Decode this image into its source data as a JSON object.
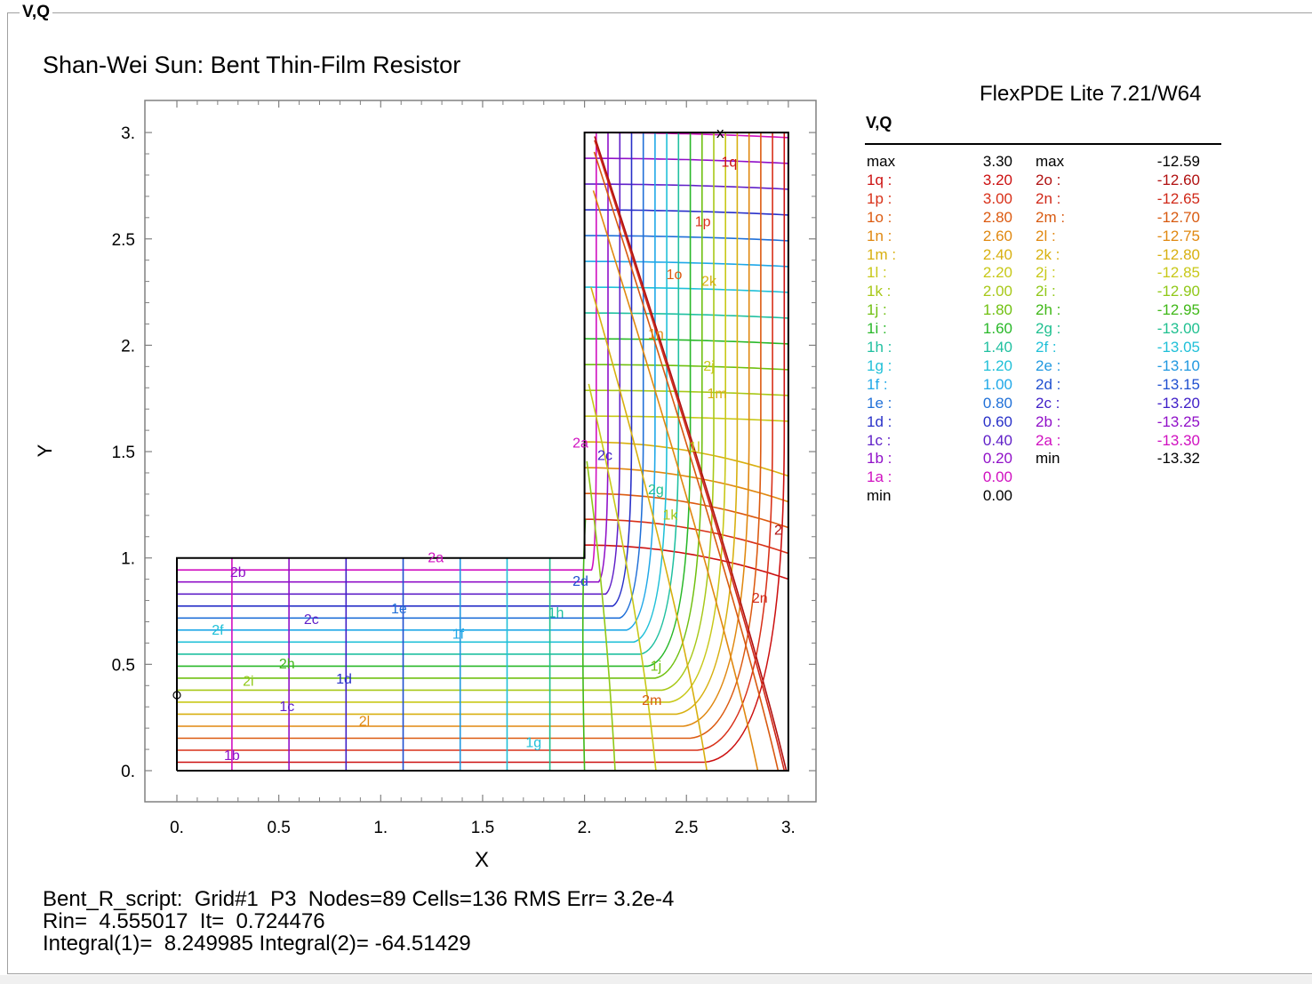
{
  "window": {
    "frame_label": "V,Q"
  },
  "plot": {
    "title": "Shan-Wei Sun: Bent Thin-Film Resistor",
    "software": "FlexPDE Lite 7.21/W64",
    "xlabel": "X",
    "ylabel": "Y"
  },
  "chart_data": {
    "type": "contour",
    "title": "Shan-Wei Sun: Bent Thin-Film Resistor",
    "xlabel": "X",
    "ylabel": "Y",
    "xlim": [
      0,
      3
    ],
    "ylim": [
      0,
      3
    ],
    "x_ticks": [
      "0.",
      "0.5",
      "1.",
      "1.5",
      "2.",
      "2.5",
      "3."
    ],
    "y_ticks": [
      "0.",
      "0.5",
      "1.",
      "1.5",
      "2.",
      "2.5",
      "3."
    ],
    "domain_boundary": [
      [
        0,
        0
      ],
      [
        3,
        0
      ],
      [
        3,
        3
      ],
      [
        2,
        3
      ],
      [
        2,
        1
      ],
      [
        0,
        1
      ],
      [
        0,
        0
      ]
    ],
    "fields": [
      "V",
      "Q"
    ],
    "legend_header": "V,Q",
    "v_levels": [
      {
        "label": "max",
        "value": "3.30",
        "color": "#000000"
      },
      {
        "label": "1q :",
        "value": "3.20",
        "color": "#cc1010"
      },
      {
        "label": "1p :",
        "value": "3.00",
        "color": "#d83018"
      },
      {
        "label": "1o :",
        "value": "2.80",
        "color": "#dc5a10"
      },
      {
        "label": "1n :",
        "value": "2.60",
        "color": "#e08810"
      },
      {
        "label": "1m :",
        "value": "2.40",
        "color": "#d8b010"
      },
      {
        "label": "1l :",
        "value": "2.20",
        "color": "#c8c818"
      },
      {
        "label": "1k :",
        "value": "2.00",
        "color": "#a8c818"
      },
      {
        "label": "1j :",
        "value": "1.80",
        "color": "#70c010"
      },
      {
        "label": "1i :",
        "value": "1.60",
        "color": "#28b828"
      },
      {
        "label": "1h :",
        "value": "1.40",
        "color": "#20c0a0"
      },
      {
        "label": "1g :",
        "value": "1.20",
        "color": "#20c0d8"
      },
      {
        "label": "1f :",
        "value": "1.00",
        "color": "#20a8e8"
      },
      {
        "label": "1e :",
        "value": "0.80",
        "color": "#2070d8"
      },
      {
        "label": "1d :",
        "value": "0.60",
        "color": "#2830c8"
      },
      {
        "label": "1c :",
        "value": "0.40",
        "color": "#6020c8"
      },
      {
        "label": "1b :",
        "value": "0.20",
        "color": "#9010c8"
      },
      {
        "label": "1a :",
        "value": "0.00",
        "color": "#d010c0"
      },
      {
        "label": "min",
        "value": "0.00",
        "color": "#000000"
      }
    ],
    "q_levels": [
      {
        "label": "max",
        "value": "-12.59",
        "color": "#000000"
      },
      {
        "label": "2o :",
        "value": "-12.60",
        "color": "#b01010"
      },
      {
        "label": "2n :",
        "value": "-12.65",
        "color": "#d02818"
      },
      {
        "label": "2m :",
        "value": "-12.70",
        "color": "#d85a10"
      },
      {
        "label": "2l :",
        "value": "-12.75",
        "color": "#e08810"
      },
      {
        "label": "2k :",
        "value": "-12.80",
        "color": "#d8b010"
      },
      {
        "label": "2j :",
        "value": "-12.85",
        "color": "#c8c818"
      },
      {
        "label": "2i :",
        "value": "-12.90",
        "color": "#90c818"
      },
      {
        "label": "2h :",
        "value": "-12.95",
        "color": "#40b818"
      },
      {
        "label": "2g :",
        "value": "-13.00",
        "color": "#20c090"
      },
      {
        "label": "2f :",
        "value": "-13.05",
        "color": "#20c0d8"
      },
      {
        "label": "2e :",
        "value": "-13.10",
        "color": "#2098e0"
      },
      {
        "label": "2d :",
        "value": "-13.15",
        "color": "#2050d0"
      },
      {
        "label": "2c :",
        "value": "-13.20",
        "color": "#4020c8"
      },
      {
        "label": "2b :",
        "value": "-13.25",
        "color": "#9010c8"
      },
      {
        "label": "2a :",
        "value": "-13.30",
        "color": "#d010c0"
      },
      {
        "label": "min",
        "value": "-13.32",
        "color": "#000000"
      }
    ],
    "plot_labels": [
      "2b",
      "2a",
      "2c",
      "1e",
      "2f",
      "1f",
      "2h",
      "1d",
      "2i",
      "1c",
      "2l",
      "1b",
      "1g",
      "1h",
      "2d",
      "1j",
      "2m",
      "2n",
      "2",
      "1k",
      "2g",
      "2c",
      "2a",
      "1l",
      "1m",
      "2j",
      "1n",
      "1o",
      "2k",
      "1p",
      "1q"
    ]
  },
  "footer": {
    "line1": "Bent_R_script:  Grid#1  P3  Nodes=89 Cells=136 RMS Err= 3.2e-4",
    "line2": "Rin=  4.555017  It=  0.724476",
    "line3": "Integral(1)=  8.249985 Integral(2)= -64.51429"
  },
  "markers": {
    "top": "x"
  }
}
